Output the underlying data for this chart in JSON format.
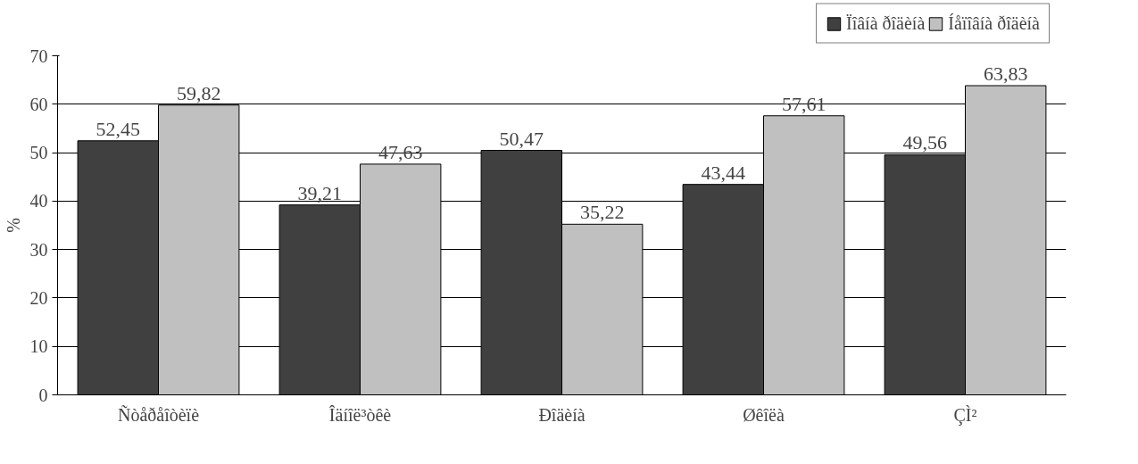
{
  "chart_data": {
    "type": "bar",
    "ylabel": "%",
    "categories": [
      "Ñòåðåîòèïè",
      "Îäíîë³òêè",
      "Ðîäèíà",
      "Øêîëà",
      "ÇÌ²"
    ],
    "series": [
      {
        "name": "Ïîâíà ðîäèíà",
        "color": "#404040",
        "values": [
          52.45,
          39.21,
          50.47,
          43.44,
          49.56
        ],
        "value_labels": [
          "52,45",
          "39,21",
          "50,47",
          "43,44",
          "49,56"
        ]
      },
      {
        "name": "Íåïîâíà ðîäèíà",
        "color": "#c0c0c0",
        "values": [
          59.82,
          47.63,
          35.22,
          57.61,
          63.83
        ],
        "value_labels": [
          "59,82",
          "47,63",
          "35,22",
          "57,61",
          "63,83"
        ]
      }
    ],
    "ylim": [
      0,
      70
    ],
    "yticks": [
      0,
      10,
      20,
      30,
      40,
      50,
      60,
      70
    ],
    "grid": "y",
    "legend": "top right"
  }
}
